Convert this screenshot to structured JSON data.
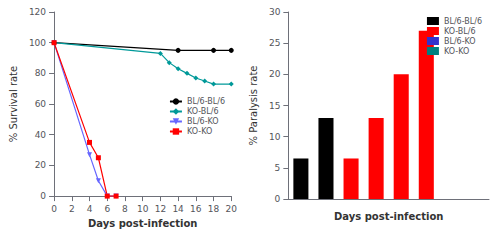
{
  "chart_data": [
    {
      "type": "line",
      "xlabel": "Days post-infection",
      "ylabel": "% Survival rate",
      "xlim": [
        0,
        20
      ],
      "ylim": [
        0,
        120
      ],
      "xticks": [
        0,
        2,
        4,
        6,
        8,
        10,
        12,
        14,
        16,
        18,
        20
      ],
      "yticks": [
        0,
        20,
        40,
        60,
        80,
        100,
        120
      ],
      "grid": false,
      "legend": "center right",
      "series": [
        {
          "name": "BL/6-BL/6",
          "color": "black",
          "marker": "circle",
          "x": [
            0,
            14,
            18,
            20
          ],
          "values": [
            100,
            95,
            95,
            95
          ]
        },
        {
          "name": "KO-BL/6",
          "color": "#009999",
          "marker": "diamond",
          "x": [
            0,
            12,
            13,
            14,
            15,
            16,
            17,
            18,
            20
          ],
          "values": [
            100,
            93,
            87,
            83,
            80,
            77,
            75,
            73,
            73
          ]
        },
        {
          "name": "BL/6-KO",
          "color": "#6666ff",
          "marker": "triangle-down",
          "x": [
            0,
            4,
            5,
            6,
            7
          ],
          "values": [
            100,
            27,
            10,
            0,
            0
          ]
        },
        {
          "name": "KO-KO",
          "color": "red",
          "marker": "square",
          "x": [
            0,
            4,
            5,
            6,
            7
          ],
          "values": [
            100,
            35,
            25,
            0,
            0
          ]
        }
      ]
    },
    {
      "type": "bar",
      "xlabel": "Days post-infection",
      "ylabel": "% Paralysis rate",
      "categories": [
        null,
        null,
        null,
        null,
        null,
        null,
        null,
        null
      ],
      "ylim": [
        0,
        30
      ],
      "yticks": [
        0,
        5,
        10,
        15,
        20,
        25,
        30
      ],
      "grid": false,
      "legend": "upper right",
      "tick_labels": "y",
      "series": [
        {
          "name": "BL/6-BL/6",
          "color": "black",
          "values": [
            6.5,
            13.0,
            null,
            null,
            null,
            null,
            null,
            null
          ]
        },
        {
          "name": "KO-BL/6",
          "color": "red",
          "values": [
            null,
            null,
            6.5,
            13.0,
            20.0,
            27.0,
            null,
            null
          ]
        },
        {
          "name": "BL/6-KO",
          "color": "#3333cc",
          "values": [
            null,
            null,
            null,
            null,
            null,
            null,
            null,
            null
          ]
        },
        {
          "name": "KO-KO",
          "color": "#008080",
          "values": [
            null,
            null,
            null,
            null,
            null,
            null,
            null,
            null
          ]
        }
      ]
    }
  ]
}
